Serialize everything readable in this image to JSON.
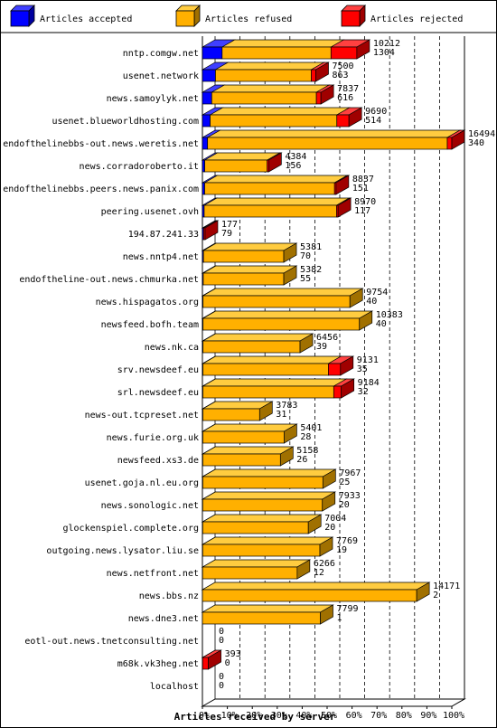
{
  "chart_data": {
    "type": "bar",
    "orientation": "horizontal",
    "stacked": true,
    "style": "3d",
    "xlabel": "Articles received by server",
    "xticks": [
      "0%",
      "10%",
      "20%",
      "30%",
      "40%",
      "50%",
      "60%",
      "70%",
      "80%",
      "90%",
      "100%"
    ],
    "xlim": [
      0,
      100
    ],
    "grid": true,
    "legend_position": "top",
    "series": [
      {
        "name": "Articles accepted",
        "color": "#0000ff",
        "side": "#0000a0",
        "top": "#4040ff"
      },
      {
        "name": "Articles refused",
        "color": "#ffb000",
        "side": "#a07000",
        "top": "#ffcc40"
      },
      {
        "name": "Articles rejected",
        "color": "#ff0000",
        "side": "#a00000",
        "top": "#ff4040"
      }
    ],
    "rows": [
      {
        "server": "nntp.comgw.net",
        "accepted": 1304,
        "refused": 7200,
        "rejected": 1708,
        "label_top": "10212",
        "label_bottom": "1304"
      },
      {
        "server": "usenet.network",
        "accepted": 863,
        "refused": 6337,
        "rejected": 300,
        "label_top": "7500",
        "label_bottom": "863"
      },
      {
        "server": "news.samoylyk.net",
        "accepted": 616,
        "refused": 6921,
        "rejected": 300,
        "label_top": "7837",
        "label_bottom": "616"
      },
      {
        "server": "usenet.blueworldhosting.com",
        "accepted": 514,
        "refused": 8376,
        "rejected": 800,
        "label_top": "9690",
        "label_bottom": "514"
      },
      {
        "server": "endofthelinebbs-out.news.weretis.net",
        "accepted": 340,
        "refused": 15854,
        "rejected": 300,
        "label_top": "16494",
        "label_bottom": "340"
      },
      {
        "server": "news.corradoroberto.it",
        "accepted": 156,
        "refused": 4128,
        "rejected": 100,
        "label_top": "4384",
        "label_bottom": "156"
      },
      {
        "server": "endofthelinebbs.peers.news.panix.com",
        "accepted": 151,
        "refused": 8586,
        "rejected": 100,
        "label_top": "8837",
        "label_bottom": "151"
      },
      {
        "server": "peering.usenet.ovh",
        "accepted": 117,
        "refused": 8753,
        "rejected": 100,
        "label_top": "8970",
        "label_bottom": "117"
      },
      {
        "server": "194.87.241.33",
        "accepted": 79,
        "refused": 0,
        "rejected": 98,
        "label_top": "177",
        "label_bottom": "79"
      },
      {
        "server": "news.nntp4.net",
        "accepted": 70,
        "refused": 5311,
        "rejected": 0,
        "label_top": "5381",
        "label_bottom": "70"
      },
      {
        "server": "endoftheline-out.news.chmurka.net",
        "accepted": 55,
        "refused": 5327,
        "rejected": 0,
        "label_top": "5382",
        "label_bottom": "55"
      },
      {
        "server": "news.hispagatos.org",
        "accepted": 40,
        "refused": 9714,
        "rejected": 0,
        "label_top": "9754",
        "label_bottom": "40"
      },
      {
        "server": "newsfeed.bofh.team",
        "accepted": 40,
        "refused": 10343,
        "rejected": 0,
        "label_top": "10383",
        "label_bottom": "40"
      },
      {
        "server": "news.nk.ca",
        "accepted": 39,
        "refused": 6417,
        "rejected": 0,
        "label_top": "6456",
        "label_bottom": "39"
      },
      {
        "server": "srv.newsdeef.eu",
        "accepted": 35,
        "refused": 8296,
        "rejected": 800,
        "label_top": "9131",
        "label_bottom": "35"
      },
      {
        "server": "srl.newsdeef.eu",
        "accepted": 32,
        "refused": 8652,
        "rejected": 500,
        "label_top": "9184",
        "label_bottom": "32"
      },
      {
        "server": "news-out.tcpreset.net",
        "accepted": 31,
        "refused": 3752,
        "rejected": 0,
        "label_top": "3783",
        "label_bottom": "31"
      },
      {
        "server": "news.furie.org.uk",
        "accepted": 28,
        "refused": 5373,
        "rejected": 0,
        "label_top": "5401",
        "label_bottom": "28"
      },
      {
        "server": "newsfeed.xs3.de",
        "accepted": 26,
        "refused": 5132,
        "rejected": 0,
        "label_top": "5158",
        "label_bottom": "26"
      },
      {
        "server": "usenet.goja.nl.eu.org",
        "accepted": 25,
        "refused": 7942,
        "rejected": 0,
        "label_top": "7967",
        "label_bottom": "25"
      },
      {
        "server": "news.sonologic.net",
        "accepted": 20,
        "refused": 7913,
        "rejected": 0,
        "label_top": "7933",
        "label_bottom": "20"
      },
      {
        "server": "glockenspiel.complete.org",
        "accepted": 20,
        "refused": 6984,
        "rejected": 0,
        "label_top": "7004",
        "label_bottom": "20"
      },
      {
        "server": "outgoing.news.lysator.liu.se",
        "accepted": 19,
        "refused": 7750,
        "rejected": 0,
        "label_top": "7769",
        "label_bottom": "19"
      },
      {
        "server": "news.netfront.net",
        "accepted": 12,
        "refused": 6254,
        "rejected": 0,
        "label_top": "6266",
        "label_bottom": "12"
      },
      {
        "server": "news.bbs.nz",
        "accepted": 2,
        "refused": 14169,
        "rejected": 0,
        "label_top": "14171",
        "label_bottom": "2"
      },
      {
        "server": "news.dne3.net",
        "accepted": 1,
        "refused": 7798,
        "rejected": 0,
        "label_top": "7799",
        "label_bottom": "1"
      },
      {
        "server": "eotl-out.news.tnetconsulting.net",
        "accepted": 0,
        "refused": 0,
        "rejected": 0,
        "label_top": "0",
        "label_bottom": "0"
      },
      {
        "server": "m68k.vk3heg.net",
        "accepted": 0,
        "refused": 13,
        "rejected": 380,
        "label_top": "393",
        "label_bottom": "0"
      },
      {
        "server": "localhost",
        "accepted": 0,
        "refused": 0,
        "rejected": 0,
        "label_top": "0",
        "label_bottom": "0"
      }
    ],
    "max_total": 16494
  }
}
